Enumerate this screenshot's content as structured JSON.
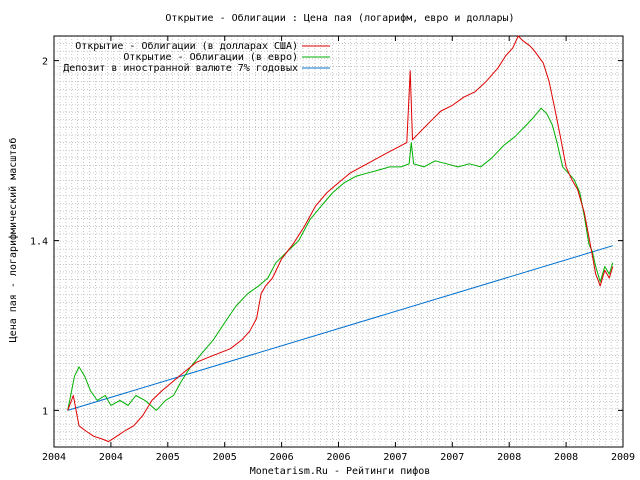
{
  "chart_data": {
    "type": "line",
    "title": "Открытие - Облигации : Цена пая (логарифм, евро и доллары)",
    "xlabel": "Monetarism.Ru - Рейтинги пифов",
    "ylabel": "Цена пая - логарифмический масштаб",
    "y_scale": "log",
    "ylim": [
      0.93,
      2.1
    ],
    "y_ticks": [
      1,
      1.4,
      2
    ],
    "y_tick_labels": [
      "1",
      "1.4",
      "2"
    ],
    "xlim": [
      2004.0,
      2009.0
    ],
    "x_ticks": [
      2004.0,
      2004.5,
      2005.0,
      2005.5,
      2006.0,
      2006.5,
      2007.0,
      2007.5,
      2008.0,
      2008.5,
      2009.0
    ],
    "x_tick_labels": [
      "2004",
      "2004",
      "2005",
      "2005",
      "2006",
      "2006",
      "2007",
      "2007",
      "2008",
      "2008",
      "2009"
    ],
    "grid": true,
    "legend_position": "top-left",
    "series": [
      {
        "name": "Открытие - Облигации (в долларах США)",
        "color": "#e00000",
        "points": [
          [
            2004.12,
            1.0
          ],
          [
            2004.17,
            1.03
          ],
          [
            2004.22,
            0.97
          ],
          [
            2004.28,
            0.96
          ],
          [
            2004.35,
            0.95
          ],
          [
            2004.42,
            0.945
          ],
          [
            2004.48,
            0.94
          ],
          [
            2004.55,
            0.95
          ],
          [
            2004.62,
            0.96
          ],
          [
            2004.7,
            0.97
          ],
          [
            2004.78,
            0.99
          ],
          [
            2004.86,
            1.02
          ],
          [
            2004.95,
            1.04
          ],
          [
            2005.05,
            1.06
          ],
          [
            2005.15,
            1.08
          ],
          [
            2005.25,
            1.1
          ],
          [
            2005.35,
            1.11
          ],
          [
            2005.45,
            1.12
          ],
          [
            2005.55,
            1.13
          ],
          [
            2005.65,
            1.15
          ],
          [
            2005.72,
            1.17
          ],
          [
            2005.78,
            1.2
          ],
          [
            2005.82,
            1.26
          ],
          [
            2005.86,
            1.28
          ],
          [
            2005.92,
            1.3
          ],
          [
            2006.0,
            1.35
          ],
          [
            2006.1,
            1.39
          ],
          [
            2006.2,
            1.44
          ],
          [
            2006.3,
            1.5
          ],
          [
            2006.4,
            1.54
          ],
          [
            2006.5,
            1.57
          ],
          [
            2006.6,
            1.6
          ],
          [
            2006.7,
            1.62
          ],
          [
            2006.8,
            1.64
          ],
          [
            2006.9,
            1.66
          ],
          [
            2007.0,
            1.68
          ],
          [
            2007.05,
            1.69
          ],
          [
            2007.1,
            1.7
          ],
          [
            2007.13,
            1.96
          ],
          [
            2007.15,
            1.71
          ],
          [
            2007.2,
            1.73
          ],
          [
            2007.3,
            1.77
          ],
          [
            2007.4,
            1.81
          ],
          [
            2007.5,
            1.83
          ],
          [
            2007.6,
            1.86
          ],
          [
            2007.7,
            1.88
          ],
          [
            2007.8,
            1.92
          ],
          [
            2007.9,
            1.97
          ],
          [
            2007.97,
            2.02
          ],
          [
            2008.03,
            2.05
          ],
          [
            2008.08,
            2.1
          ],
          [
            2008.12,
            2.08
          ],
          [
            2008.18,
            2.06
          ],
          [
            2008.22,
            2.04
          ],
          [
            2008.3,
            1.99
          ],
          [
            2008.35,
            1.92
          ],
          [
            2008.4,
            1.82
          ],
          [
            2008.45,
            1.72
          ],
          [
            2008.5,
            1.62
          ],
          [
            2008.55,
            1.58
          ],
          [
            2008.6,
            1.55
          ],
          [
            2008.66,
            1.48
          ],
          [
            2008.7,
            1.41
          ],
          [
            2008.73,
            1.36
          ],
          [
            2008.76,
            1.31
          ],
          [
            2008.8,
            1.28
          ],
          [
            2008.84,
            1.32
          ],
          [
            2008.88,
            1.3
          ],
          [
            2008.91,
            1.33
          ]
        ]
      },
      {
        "name": "Открытие - Облигации (в евро)",
        "color": "#00b000",
        "points": [
          [
            2004.12,
            1.0
          ],
          [
            2004.18,
            1.07
          ],
          [
            2004.22,
            1.09
          ],
          [
            2004.27,
            1.07
          ],
          [
            2004.32,
            1.04
          ],
          [
            2004.38,
            1.02
          ],
          [
            2004.45,
            1.03
          ],
          [
            2004.5,
            1.01
          ],
          [
            2004.58,
            1.02
          ],
          [
            2004.65,
            1.01
          ],
          [
            2004.72,
            1.03
          ],
          [
            2004.8,
            1.02
          ],
          [
            2004.9,
            1.0
          ],
          [
            2004.98,
            1.02
          ],
          [
            2005.05,
            1.03
          ],
          [
            2005.12,
            1.06
          ],
          [
            2005.2,
            1.09
          ],
          [
            2005.3,
            1.12
          ],
          [
            2005.4,
            1.15
          ],
          [
            2005.5,
            1.19
          ],
          [
            2005.6,
            1.23
          ],
          [
            2005.7,
            1.26
          ],
          [
            2005.8,
            1.28
          ],
          [
            2005.88,
            1.3
          ],
          [
            2005.95,
            1.34
          ],
          [
            2006.05,
            1.37
          ],
          [
            2006.15,
            1.4
          ],
          [
            2006.25,
            1.46
          ],
          [
            2006.35,
            1.5
          ],
          [
            2006.45,
            1.54
          ],
          [
            2006.55,
            1.57
          ],
          [
            2006.65,
            1.59
          ],
          [
            2006.75,
            1.6
          ],
          [
            2006.85,
            1.61
          ],
          [
            2006.95,
            1.62
          ],
          [
            2007.05,
            1.62
          ],
          [
            2007.12,
            1.63
          ],
          [
            2007.14,
            1.7
          ],
          [
            2007.16,
            1.63
          ],
          [
            2007.25,
            1.62
          ],
          [
            2007.35,
            1.64
          ],
          [
            2007.45,
            1.63
          ],
          [
            2007.55,
            1.62
          ],
          [
            2007.65,
            1.63
          ],
          [
            2007.75,
            1.62
          ],
          [
            2007.85,
            1.65
          ],
          [
            2007.95,
            1.69
          ],
          [
            2008.05,
            1.72
          ],
          [
            2008.15,
            1.76
          ],
          [
            2008.22,
            1.79
          ],
          [
            2008.28,
            1.82
          ],
          [
            2008.33,
            1.8
          ],
          [
            2008.38,
            1.76
          ],
          [
            2008.42,
            1.7
          ],
          [
            2008.47,
            1.62
          ],
          [
            2008.52,
            1.6
          ],
          [
            2008.57,
            1.58
          ],
          [
            2008.62,
            1.54
          ],
          [
            2008.66,
            1.47
          ],
          [
            2008.7,
            1.39
          ],
          [
            2008.73,
            1.37
          ],
          [
            2008.76,
            1.33
          ],
          [
            2008.8,
            1.29
          ],
          [
            2008.84,
            1.33
          ],
          [
            2008.88,
            1.31
          ],
          [
            2008.91,
            1.34
          ]
        ]
      },
      {
        "name": "Депозит в иностранной валюте 7% годовых",
        "color": "#0070d0",
        "points": [
          [
            2004.12,
            1.0
          ],
          [
            2008.91,
            1.386
          ]
        ]
      }
    ]
  }
}
